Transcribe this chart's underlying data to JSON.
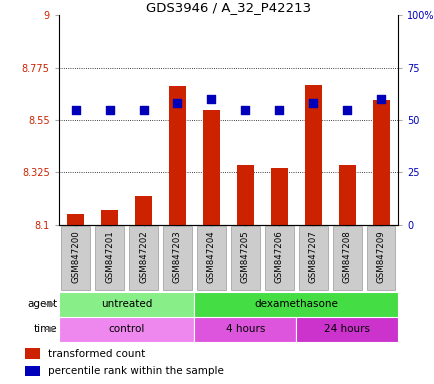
{
  "title": "GDS3946 / A_32_P42213",
  "samples": [
    "GSM847200",
    "GSM847201",
    "GSM847202",
    "GSM847203",
    "GSM847204",
    "GSM847205",
    "GSM847206",
    "GSM847207",
    "GSM847208",
    "GSM847209"
  ],
  "bar_values": [
    8.145,
    8.165,
    8.225,
    8.695,
    8.595,
    8.355,
    8.345,
    8.7,
    8.355,
    8.635
  ],
  "bar_baseline": 8.1,
  "percentile_values": [
    55,
    55,
    55,
    58,
    60,
    55,
    55,
    58,
    55,
    60
  ],
  "ylim_left": [
    8.1,
    9.0
  ],
  "ylim_right": [
    0,
    100
  ],
  "yticks_left": [
    8.1,
    8.325,
    8.55,
    8.775,
    9.0
  ],
  "ytick_labels_left": [
    "8.1",
    "8.325",
    "8.55",
    "8.775",
    "9"
  ],
  "yticks_right": [
    0,
    25,
    50,
    75,
    100
  ],
  "ytick_labels_right": [
    "0",
    "25",
    "50",
    "75",
    "100%"
  ],
  "hlines": [
    8.325,
    8.55,
    8.775
  ],
  "bar_color": "#cc2200",
  "dot_color": "#0000bb",
  "agent_groups": [
    {
      "label": "untreated",
      "start": 0,
      "end": 4,
      "color": "#88ee88"
    },
    {
      "label": "dexamethasone",
      "start": 4,
      "end": 10,
      "color": "#44dd44"
    }
  ],
  "time_groups": [
    {
      "label": "control",
      "start": 0,
      "end": 4,
      "color": "#ee88ee"
    },
    {
      "label": "4 hours",
      "start": 4,
      "end": 7,
      "color": "#dd55dd"
    },
    {
      "label": "24 hours",
      "start": 7,
      "end": 10,
      "color": "#cc33cc"
    }
  ],
  "legend_bar_label": "transformed count",
  "legend_dot_label": "percentile rank within the sample",
  "bar_width": 0.5,
  "dot_size": 28,
  "tick_label_color_left": "#cc2200",
  "tick_label_color_right": "#0000bb",
  "sample_box_color": "#cccccc",
  "sample_box_edge": "#999999"
}
